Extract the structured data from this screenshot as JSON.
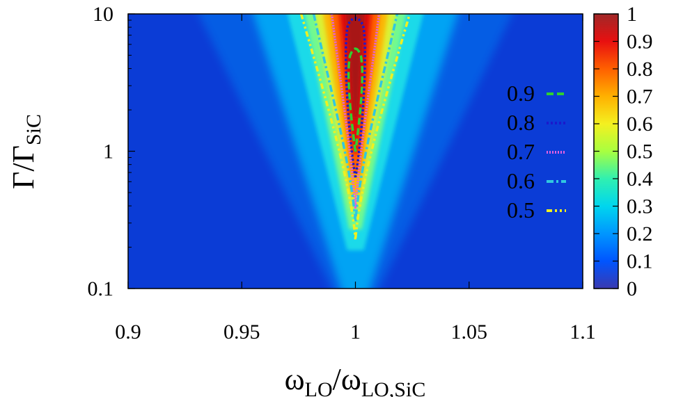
{
  "chart_data": {
    "type": "heatmap",
    "title": "",
    "xlabel": {
      "main": "ω",
      "sub1": "LO",
      "slash": "/ω",
      "sub2": "LO,SiC"
    },
    "ylabel": {
      "main": "Γ/Γ",
      "sub": "SiC"
    },
    "x_range": [
      0.9,
      1.1
    ],
    "y_range": [
      0.1,
      10
    ],
    "y_scale": "log",
    "x_ticks": [
      "0.9",
      "0.95",
      "1",
      "1.05",
      "1.1"
    ],
    "x_tick_values": [
      0.9,
      0.95,
      1.0,
      1.05,
      1.1
    ],
    "y_ticks": [
      "0.1",
      "1",
      "10"
    ],
    "y_tick_values": [
      0.1,
      1,
      10
    ],
    "colorbar": {
      "range": [
        0,
        1
      ],
      "ticks": [
        "0",
        "0.1",
        "0.2",
        "0.3",
        "0.4",
        "0.5",
        "0.6",
        "0.7",
        "0.8",
        "0.9",
        "1"
      ],
      "colormap": [
        "#3a3ab0",
        "#0055ff",
        "#00a0ff",
        "#00e6e6",
        "#40ff90",
        "#c8ff30",
        "#ffe600",
        "#ffa000",
        "#ff5000",
        "#e00000",
        "#a02020"
      ]
    },
    "contours": [
      {
        "level": "0.9",
        "color": "#30d030",
        "style": "dashed"
      },
      {
        "level": "0.8",
        "color": "#1a1acc",
        "style": "dotted"
      },
      {
        "level": "0.7",
        "color": "#e060e0",
        "style": "dense-dotted"
      },
      {
        "level": "0.6",
        "color": "#30c8e0",
        "style": "dash-dot"
      },
      {
        "level": "0.5",
        "color": "#f0f020",
        "style": "dash-dot-dot"
      }
    ],
    "legend_position": "right-inside",
    "grid": false
  }
}
